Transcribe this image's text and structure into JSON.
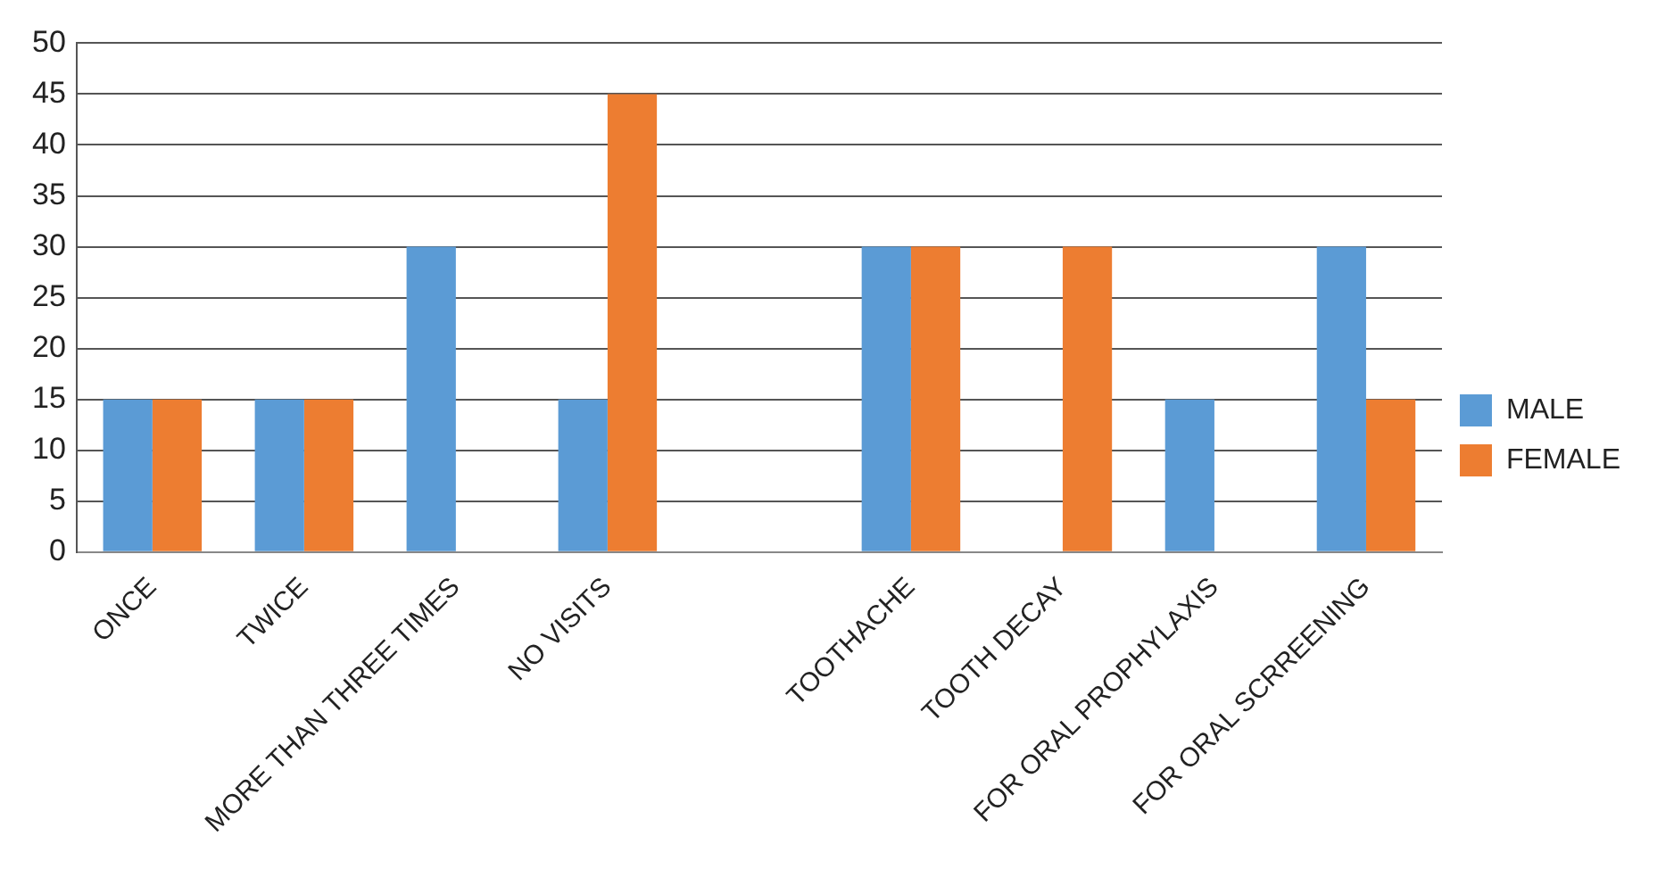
{
  "chart_data": {
    "type": "bar",
    "categories": [
      "ONCE",
      "TWICE",
      "MORE THAN THREE TIMES",
      "NO VISITS",
      null,
      "TOOTHACHE",
      "TOOTH DECAY",
      "FOR ORAL PROPHYLAXIS",
      "FOR ORAL SCRREENING"
    ],
    "series": [
      {
        "name": "MALE",
        "color": "#5b9bd5",
        "values": [
          15,
          15,
          30,
          15,
          null,
          30,
          null,
          15,
          30
        ]
      },
      {
        "name": "FEMALE",
        "color": "#ed7d31",
        "values": [
          15,
          15,
          null,
          45,
          null,
          30,
          30,
          null,
          15
        ]
      }
    ],
    "ylim": [
      0,
      50
    ],
    "yticks": [
      0,
      5,
      10,
      15,
      20,
      25,
      30,
      35,
      40,
      45,
      50
    ],
    "grid": "y",
    "legend": "right"
  }
}
